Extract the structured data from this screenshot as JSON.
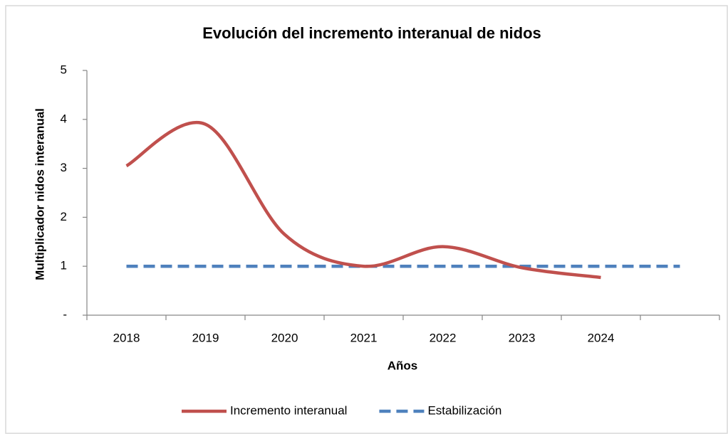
{
  "chart_data": {
    "type": "line",
    "title": "Evolución del incremento interanual de nidos",
    "xlabel": "Años",
    "ylabel": "Multiplicador nidos interanual",
    "categories": [
      "2018",
      "2019",
      "2020",
      "2021",
      "2022",
      "2023",
      "2024",
      null
    ],
    "series": [
      {
        "name": "Incremento interanual",
        "color": "#c0504d",
        "dash": false,
        "smooth": true,
        "values": [
          3.05,
          3.9,
          1.65,
          1.0,
          1.4,
          0.97,
          0.77,
          null
        ]
      },
      {
        "name": "Estabilización",
        "color": "#4f81bd",
        "dash": true,
        "smooth": false,
        "values": [
          1,
          1,
          1,
          1,
          1,
          1,
          1,
          1
        ]
      }
    ],
    "ylim": [
      0,
      5
    ],
    "yticks": [
      {
        "value": 0,
        "label": "-"
      },
      1,
      2,
      3,
      4,
      5
    ],
    "legend": "bottom"
  }
}
